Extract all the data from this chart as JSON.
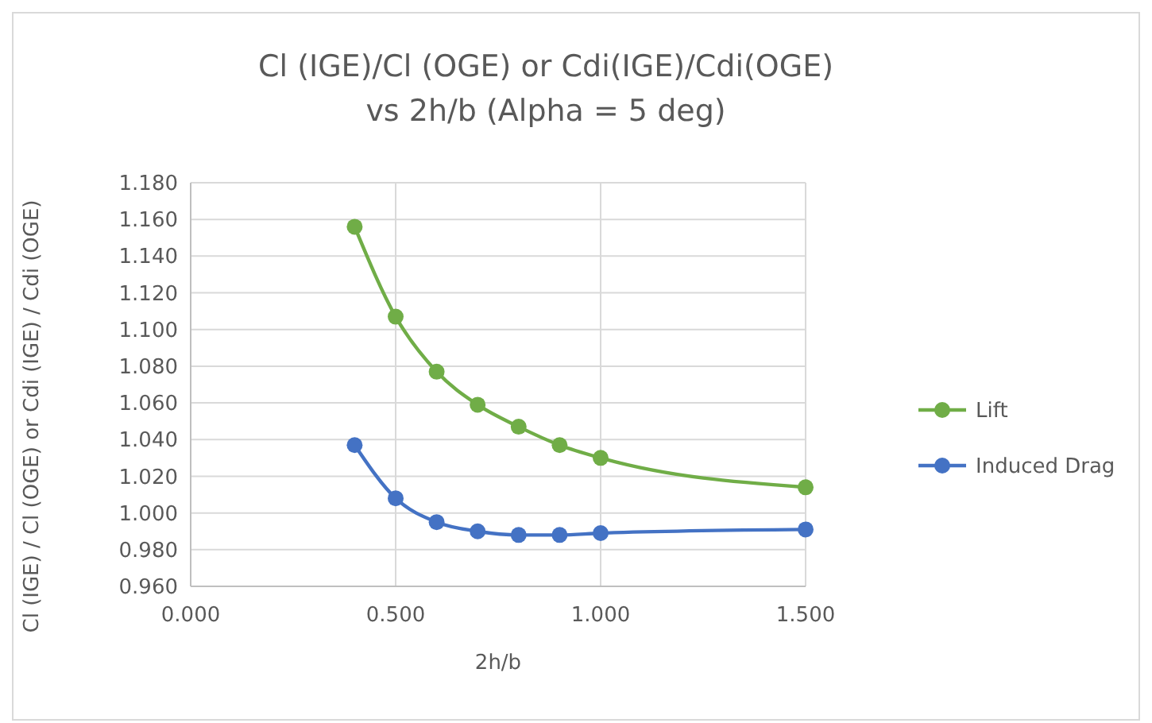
{
  "chart_data": {
    "type": "line",
    "title": "Cl (IGE)/Cl (OGE) or Cdi(IGE)/Cdi(OGE)\nvs 2h/b (Alpha = 5 deg)",
    "xlabel": "2h/b",
    "ylabel": "Cl (IGE) / Cl (OGE) or Cdi (IGE) / Cdi (OGE)",
    "x": [
      0.4,
      0.5,
      0.6,
      0.7,
      0.8,
      0.9,
      1.0,
      1.5
    ],
    "series": [
      {
        "name": "Lift",
        "color": "#70ad47",
        "values": [
          1.156,
          1.107,
          1.077,
          1.059,
          1.047,
          1.037,
          1.03,
          1.014
        ]
      },
      {
        "name": "Induced Drag",
        "color": "#4472c4",
        "values": [
          1.037,
          1.008,
          0.995,
          0.99,
          0.988,
          0.988,
          0.989,
          0.991
        ]
      }
    ],
    "xlim": [
      0,
      1.5
    ],
    "xticks": [
      {
        "value": 0,
        "label": "0.000"
      },
      {
        "value": 0.5,
        "label": "0.500"
      },
      {
        "value": 1,
        "label": "1.000"
      },
      {
        "value": 1.5,
        "label": "1.500"
      }
    ],
    "ylim": [
      0.96,
      1.18
    ],
    "yticks": [
      {
        "value": 0.96,
        "label": "0.960"
      },
      {
        "value": 0.98,
        "label": "0.980"
      },
      {
        "value": 1,
        "label": "1.000"
      },
      {
        "value": 1.02,
        "label": "1.020"
      },
      {
        "value": 1.04,
        "label": "1.040"
      },
      {
        "value": 1.06,
        "label": "1.060"
      },
      {
        "value": 1.08,
        "label": "1.080"
      },
      {
        "value": 1.1,
        "label": "1.100"
      },
      {
        "value": 1.12,
        "label": "1.120"
      },
      {
        "value": 1.14,
        "label": "1.140"
      },
      {
        "value": 1.16,
        "label": "1.160"
      },
      {
        "value": 1.18,
        "label": "1.180"
      }
    ],
    "grid": true,
    "legend": "right",
    "marker": "circle",
    "line_style": "solid"
  }
}
